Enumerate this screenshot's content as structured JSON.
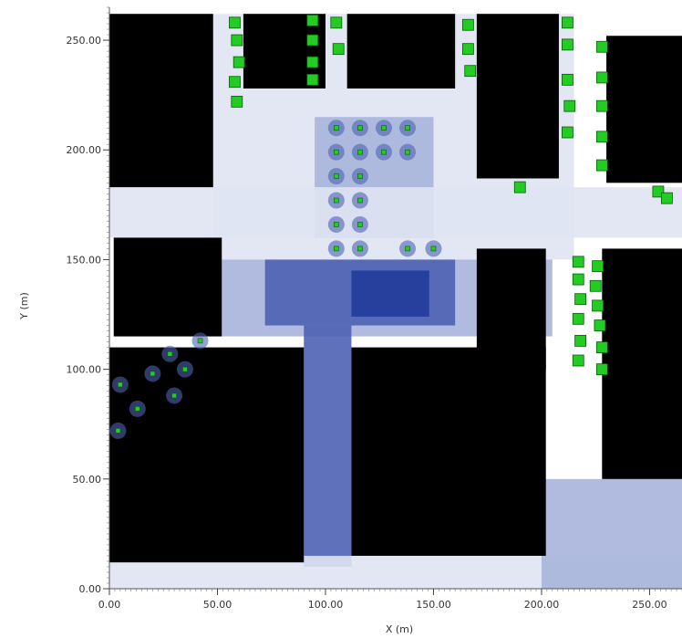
{
  "chart_data": {
    "type": "heatmap",
    "xlabel": "X (m)",
    "ylabel": "Y (m)",
    "xlim": [
      0,
      265
    ],
    "ylim": [
      0,
      265
    ],
    "x_ticks": [
      "0.00",
      "50.00",
      "100.00",
      "150.00",
      "200.00",
      "250.00"
    ],
    "y_ticks": [
      "0.00",
      "50.00",
      "100.00",
      "150.00",
      "200.00",
      "250.00"
    ],
    "x_tick_values": [
      0,
      50,
      100,
      150,
      200,
      250
    ],
    "y_tick_values": [
      0,
      50,
      100,
      150,
      200,
      250
    ],
    "colors": {
      "building": "#000000",
      "tree": "#22cc22",
      "background": "#ffffff",
      "shade_light": "#dfe4f2",
      "shade_mid": "#a9b4db",
      "shade_dark": "#4d62b3",
      "shade_deep": "#233c9a"
    },
    "buildings": [
      {
        "x": [
          0,
          48
        ],
        "y": [
          183,
          262
        ]
      },
      {
        "x": [
          62,
          100
        ],
        "y": [
          228,
          262
        ]
      },
      {
        "x": [
          110,
          160
        ],
        "y": [
          228,
          262
        ]
      },
      {
        "x": [
          170,
          208
        ],
        "y": [
          187,
          262
        ]
      },
      {
        "x": [
          230,
          265
        ],
        "y": [
          185,
          252
        ]
      },
      {
        "x": [
          2,
          52
        ],
        "y": [
          115,
          160
        ]
      },
      {
        "x": [
          170,
          202
        ],
        "y": [
          100,
          155
        ]
      },
      {
        "x": [
          228,
          265
        ],
        "y": [
          50,
          155
        ]
      },
      {
        "x": [
          0,
          90
        ],
        "y": [
          12,
          110
        ]
      },
      {
        "x": [
          112,
          202
        ],
        "y": [
          15,
          110
        ]
      }
    ],
    "trees": [
      {
        "x": 58,
        "y": 258
      },
      {
        "x": 59,
        "y": 250
      },
      {
        "x": 60,
        "y": 240
      },
      {
        "x": 58,
        "y": 231
      },
      {
        "x": 59,
        "y": 222
      },
      {
        "x": 94,
        "y": 259
      },
      {
        "x": 94,
        "y": 250
      },
      {
        "x": 94,
        "y": 240
      },
      {
        "x": 94,
        "y": 232
      },
      {
        "x": 105,
        "y": 258
      },
      {
        "x": 106,
        "y": 246
      },
      {
        "x": 166,
        "y": 257
      },
      {
        "x": 166,
        "y": 246
      },
      {
        "x": 167,
        "y": 236
      },
      {
        "x": 212,
        "y": 258
      },
      {
        "x": 212,
        "y": 248
      },
      {
        "x": 212,
        "y": 232
      },
      {
        "x": 213,
        "y": 220
      },
      {
        "x": 212,
        "y": 208
      },
      {
        "x": 228,
        "y": 247
      },
      {
        "x": 228,
        "y": 233
      },
      {
        "x": 228,
        "y": 220
      },
      {
        "x": 228,
        "y": 206
      },
      {
        "x": 228,
        "y": 193
      },
      {
        "x": 190,
        "y": 183
      },
      {
        "x": 254,
        "y": 181
      },
      {
        "x": 258,
        "y": 178
      },
      {
        "x": 217,
        "y": 149
      },
      {
        "x": 226,
        "y": 147
      },
      {
        "x": 217,
        "y": 141
      },
      {
        "x": 225,
        "y": 138
      },
      {
        "x": 218,
        "y": 132
      },
      {
        "x": 226,
        "y": 129
      },
      {
        "x": 217,
        "y": 123
      },
      {
        "x": 227,
        "y": 120
      },
      {
        "x": 218,
        "y": 113
      },
      {
        "x": 228,
        "y": 110
      },
      {
        "x": 217,
        "y": 104
      },
      {
        "x": 228,
        "y": 100
      }
    ],
    "small_trees": [
      {
        "x": 105,
        "y": 210
      },
      {
        "x": 116,
        "y": 210
      },
      {
        "x": 127,
        "y": 210
      },
      {
        "x": 138,
        "y": 210
      },
      {
        "x": 105,
        "y": 199
      },
      {
        "x": 116,
        "y": 199
      },
      {
        "x": 127,
        "y": 199
      },
      {
        "x": 138,
        "y": 199
      },
      {
        "x": 105,
        "y": 188
      },
      {
        "x": 116,
        "y": 188
      },
      {
        "x": 105,
        "y": 177
      },
      {
        "x": 116,
        "y": 177
      },
      {
        "x": 105,
        "y": 166
      },
      {
        "x": 116,
        "y": 166
      },
      {
        "x": 105,
        "y": 155
      },
      {
        "x": 116,
        "y": 155
      },
      {
        "x": 138,
        "y": 155
      },
      {
        "x": 150,
        "y": 155
      },
      {
        "x": 5,
        "y": 93
      },
      {
        "x": 13,
        "y": 82
      },
      {
        "x": 20,
        "y": 98
      },
      {
        "x": 28,
        "y": 107
      },
      {
        "x": 35,
        "y": 100
      },
      {
        "x": 42,
        "y": 113
      },
      {
        "x": 30,
        "y": 88
      },
      {
        "x": 4,
        "y": 72
      }
    ],
    "shade_zones": [
      {
        "x": [
          48,
          215
        ],
        "y": [
          150,
          262
        ],
        "level": "light"
      },
      {
        "x": [
          48,
          205
        ],
        "y": [
          115,
          150
        ],
        "level": "mid"
      },
      {
        "x": [
          95,
          150
        ],
        "y": [
          160,
          215
        ],
        "level": "mid"
      },
      {
        "x": [
          72,
          160
        ],
        "y": [
          120,
          150
        ],
        "level": "dark"
      },
      {
        "x": [
          112,
          148
        ],
        "y": [
          124,
          145
        ],
        "level": "deep"
      },
      {
        "x": [
          90,
          112
        ],
        "y": [
          10,
          120
        ],
        "level": "dark"
      },
      {
        "x": [
          0,
          265
        ],
        "y": [
          0,
          15
        ],
        "level": "light"
      },
      {
        "x": [
          0,
          265
        ],
        "y": [
          160,
          183
        ],
        "level": "light"
      },
      {
        "x": [
          200,
          265
        ],
        "y": [
          0,
          50
        ],
        "level": "mid"
      }
    ]
  }
}
